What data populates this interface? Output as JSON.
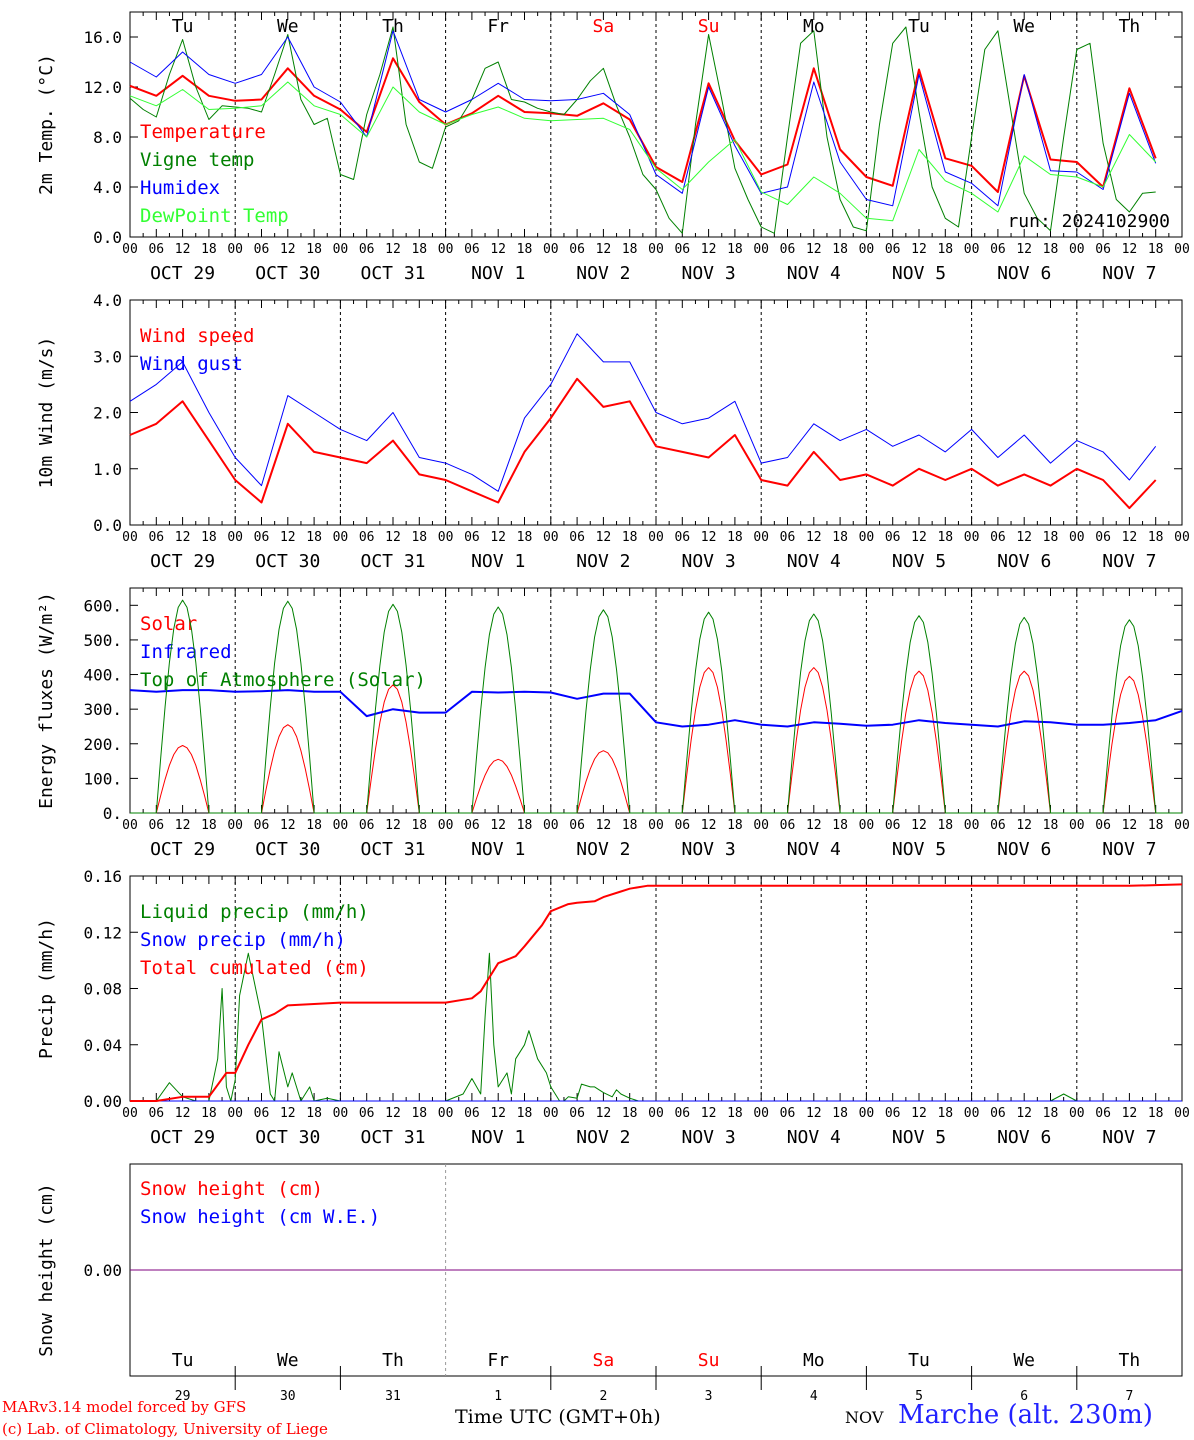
{
  "run_label": "run: 2024102900",
  "x_hour_labels": [
    "00",
    "06",
    "12",
    "18"
  ],
  "x_date_labels": [
    "OCT 29",
    "OCT 30",
    "OCT 31",
    "NOV  1",
    "NOV  2",
    "NOV  3",
    "NOV  4",
    "NOV  5",
    "NOV  6",
    "NOV  7"
  ],
  "weekdays": [
    "Tu",
    "We",
    "Th",
    "Fr",
    "Sa",
    "Su",
    "Mo",
    "Tu",
    "We",
    "Th"
  ],
  "weekday_colors": [
    "#000000",
    "#000000",
    "#000000",
    "#000000",
    "#ff0000",
    "#ff0000",
    "#000000",
    "#000000",
    "#000000",
    "#000000"
  ],
  "day_numbers": [
    "29",
    "30",
    "31",
    "1",
    "2",
    "3",
    "4",
    "5",
    "6",
    "7"
  ],
  "footer": {
    "credit_line1": "MARv3.14 model forced by GFS",
    "credit_line2": "(c) Lab. of Climatology, University of Liege",
    "x_title": "Time UTC (GMT+0h)",
    "month": "NOV",
    "station": "Marche (alt. 230m)"
  },
  "colors": {
    "red": "#ff0000",
    "green": "#008000",
    "blue": "#0000ff",
    "lightgreen": "#33ff33",
    "purple": "#7f007f"
  },
  "chart_data": [
    {
      "type": "line",
      "ylabel": "2m Temp. (°C)",
      "ylim": [
        0,
        18
      ],
      "yticks": [
        0,
        4,
        8,
        12,
        16
      ],
      "ytick_labels": [
        "0.0",
        "4.0",
        "8.0",
        "12.0",
        "16.0"
      ],
      "x_unit": "hours since OCT 29 00 UTC",
      "series": [
        {
          "name": "Temperature",
          "color": "#ff0000",
          "width": 2,
          "x": [
            0,
            6,
            12,
            18,
            24,
            30,
            36,
            42,
            48,
            54,
            60,
            66,
            72,
            78,
            84,
            90,
            96,
            102,
            108,
            114,
            120,
            126,
            132,
            138,
            144,
            150,
            156,
            162,
            168,
            174,
            180,
            186,
            192,
            198,
            204,
            210,
            216,
            222,
            228,
            234
          ],
          "y": [
            12.1,
            11.3,
            12.9,
            11.3,
            10.9,
            11.0,
            13.5,
            11.3,
            10.2,
            8.4,
            14.3,
            10.8,
            9.0,
            9.9,
            11.3,
            10.0,
            9.9,
            9.7,
            10.7,
            9.4,
            5.6,
            4.4,
            12.3,
            7.7,
            5.0,
            5.8,
            13.5,
            7.0,
            4.8,
            4.1,
            13.4,
            6.3,
            5.7,
            3.6,
            12.9,
            6.2,
            6.0,
            4.0,
            11.9,
            6.3
          ]
        },
        {
          "name": "Vigne temp",
          "color": "#008000",
          "width": 1,
          "x": [
            0,
            3,
            6,
            9,
            12,
            15,
            18,
            21,
            24,
            27,
            30,
            33,
            36,
            39,
            42,
            45,
            48,
            51,
            54,
            57,
            60,
            63,
            66,
            69,
            72,
            75,
            78,
            81,
            84,
            87,
            90,
            93,
            96,
            99,
            102,
            105,
            108,
            111,
            114,
            117,
            120,
            123,
            126,
            129,
            132,
            135,
            138,
            141,
            144,
            147,
            150,
            153,
            156,
            159,
            162,
            165,
            168,
            171,
            174,
            177,
            180,
            183,
            186,
            189,
            192,
            195,
            198,
            201,
            204,
            207,
            210,
            213,
            216,
            219,
            222,
            225,
            228,
            231,
            234
          ],
          "y": [
            11.1,
            10.2,
            9.6,
            13.0,
            15.8,
            12.0,
            9.4,
            10.5,
            10.4,
            10.3,
            10.0,
            13.0,
            16.2,
            11.0,
            9.0,
            9.5,
            5.0,
            4.6,
            9.8,
            13.0,
            16.8,
            9.0,
            6.0,
            5.5,
            8.8,
            9.3,
            11.0,
            13.5,
            14.0,
            11.0,
            10.8,
            10.3,
            10.0,
            9.8,
            11.0,
            12.5,
            13.5,
            10.5,
            8.0,
            5.0,
            3.8,
            1.5,
            0.3,
            9.0,
            16.2,
            11.0,
            5.5,
            3.0,
            0.8,
            0.3,
            8.0,
            15.5,
            16.5,
            8.0,
            3.0,
            0.8,
            0.5,
            9.0,
            15.5,
            16.8,
            10.0,
            4.0,
            1.5,
            0.8,
            8.0,
            15.0,
            16.5,
            10.0,
            3.5,
            1.5,
            0.5,
            8.0,
            15.0,
            15.5,
            7.5,
            3.0,
            2.0,
            3.5,
            3.6
          ]
        },
        {
          "name": "Humidex",
          "color": "#0000ff",
          "width": 1,
          "x": [
            0,
            6,
            12,
            18,
            24,
            30,
            36,
            42,
            48,
            54,
            60,
            66,
            72,
            78,
            84,
            90,
            96,
            102,
            108,
            114,
            120,
            126,
            132,
            138,
            144,
            150,
            156,
            162,
            168,
            174,
            180,
            186,
            192,
            198,
            204,
            210,
            216,
            222,
            228,
            234
          ],
          "y": [
            14.0,
            12.8,
            14.8,
            13.0,
            12.3,
            13.0,
            16.0,
            12.0,
            10.8,
            8.0,
            16.5,
            11.0,
            10.0,
            11.0,
            12.3,
            11.0,
            10.9,
            11.0,
            11.5,
            9.8,
            5.0,
            3.5,
            12.0,
            7.3,
            3.5,
            4.0,
            12.4,
            6.0,
            3.0,
            2.5,
            13.0,
            5.2,
            4.3,
            2.5,
            13.0,
            5.3,
            5.2,
            3.8,
            11.5,
            5.9
          ]
        },
        {
          "name": "DewPoint Temp",
          "color": "#33ff33",
          "width": 1,
          "x": [
            0,
            6,
            12,
            18,
            24,
            30,
            36,
            42,
            48,
            54,
            60,
            66,
            72,
            78,
            84,
            90,
            96,
            102,
            108,
            114,
            120,
            126,
            132,
            138,
            144,
            150,
            156,
            162,
            168,
            174,
            180,
            186,
            192,
            198,
            204,
            210,
            216,
            222,
            228,
            234
          ],
          "y": [
            11.3,
            10.5,
            11.8,
            10.2,
            10.3,
            10.5,
            12.4,
            10.5,
            9.8,
            8.0,
            12.0,
            10.0,
            9.0,
            9.8,
            10.4,
            9.5,
            9.3,
            9.4,
            9.5,
            8.6,
            5.5,
            3.8,
            6.0,
            7.8,
            3.6,
            2.6,
            4.8,
            3.5,
            1.5,
            1.3,
            7.0,
            4.5,
            3.5,
            2.0,
            6.5,
            5.0,
            4.8,
            4.0,
            8.2,
            6.0
          ]
        }
      ]
    },
    {
      "type": "line",
      "ylabel": "10m Wind (m/s)",
      "ylim": [
        0,
        4
      ],
      "yticks": [
        0,
        1,
        2,
        3,
        4
      ],
      "ytick_labels": [
        "0.0",
        "1.0",
        "2.0",
        "3.0",
        "4.0"
      ],
      "x_unit": "hours since OCT 29 00 UTC",
      "series": [
        {
          "name": "Wind speed",
          "color": "#ff0000",
          "width": 2,
          "x": [
            0,
            6,
            12,
            18,
            24,
            30,
            36,
            42,
            48,
            54,
            60,
            66,
            72,
            78,
            84,
            90,
            96,
            102,
            108,
            114,
            120,
            126,
            132,
            138,
            144,
            150,
            156,
            162,
            168,
            174,
            180,
            186,
            192,
            198,
            204,
            210,
            216,
            222,
            228,
            234
          ],
          "y": [
            1.6,
            1.8,
            2.2,
            1.5,
            0.8,
            0.4,
            1.8,
            1.3,
            1.2,
            1.1,
            1.5,
            0.9,
            0.8,
            0.6,
            0.4,
            1.3,
            1.9,
            2.6,
            2.1,
            2.2,
            1.4,
            1.3,
            1.2,
            1.6,
            0.8,
            0.7,
            1.3,
            0.8,
            0.9,
            0.7,
            1.0,
            0.8,
            1.0,
            0.7,
            0.9,
            0.7,
            1.0,
            0.8,
            0.3,
            0.8
          ]
        },
        {
          "name": "Wind gust",
          "color": "#0000ff",
          "width": 1,
          "x": [
            0,
            6,
            12,
            18,
            24,
            30,
            36,
            42,
            48,
            54,
            60,
            66,
            72,
            78,
            84,
            90,
            96,
            102,
            108,
            114,
            120,
            126,
            132,
            138,
            144,
            150,
            156,
            162,
            168,
            174,
            180,
            186,
            192,
            198,
            204,
            210,
            216,
            222,
            228,
            234
          ],
          "y": [
            2.2,
            2.5,
            2.9,
            2.0,
            1.2,
            0.7,
            2.3,
            2.0,
            1.7,
            1.5,
            2.0,
            1.2,
            1.1,
            0.9,
            0.6,
            1.9,
            2.5,
            3.4,
            2.9,
            2.9,
            2.0,
            1.8,
            1.9,
            2.2,
            1.1,
            1.2,
            1.8,
            1.5,
            1.7,
            1.4,
            1.6,
            1.3,
            1.7,
            1.2,
            1.6,
            1.1,
            1.5,
            1.3,
            0.8,
            1.4
          ]
        }
      ]
    },
    {
      "type": "line",
      "ylabel": "Energy fluxes (W/m²)",
      "ylim": [
        0,
        650
      ],
      "yticks": [
        0,
        100,
        200,
        300,
        400,
        500,
        600
      ],
      "ytick_labels": [
        "0.",
        "100.",
        "200.",
        "300.",
        "400.",
        "500.",
        "600."
      ],
      "x_unit": "hours since OCT 29 00 UTC",
      "series": [
        {
          "name": "Solar",
          "color": "#ff0000",
          "width": 1,
          "day_peaks": [
            195,
            255,
            370,
            155,
            180,
            420,
            420,
            410,
            410,
            395
          ]
        },
        {
          "name": "Infrared",
          "color": "#0000ff",
          "width": 2,
          "x": [
            0,
            6,
            12,
            18,
            24,
            30,
            36,
            42,
            48,
            54,
            60,
            66,
            72,
            78,
            84,
            90,
            96,
            102,
            108,
            114,
            120,
            126,
            132,
            138,
            144,
            150,
            156,
            162,
            168,
            174,
            180,
            186,
            192,
            198,
            204,
            210,
            216,
            222,
            228,
            234,
            240
          ],
          "y": [
            355,
            350,
            355,
            355,
            350,
            352,
            355,
            350,
            350,
            280,
            300,
            290,
            290,
            350,
            348,
            350,
            348,
            330,
            345,
            345,
            262,
            250,
            255,
            268,
            255,
            250,
            262,
            258,
            252,
            255,
            268,
            260,
            255,
            250,
            265,
            262,
            255,
            255,
            260,
            268,
            295
          ]
        },
        {
          "name": "Top of Atmosphere (Solar)",
          "color": "#008000",
          "width": 1,
          "day_peaks": [
            615,
            612,
            603,
            595,
            587,
            580,
            575,
            570,
            565,
            558
          ]
        }
      ]
    },
    {
      "type": "line",
      "ylabel": "Precip (mm/h)",
      "ylim": [
        0,
        0.16
      ],
      "yticks": [
        0,
        0.04,
        0.08,
        0.12,
        0.16
      ],
      "ytick_labels": [
        "0.00",
        "0.04",
        "0.08",
        "0.12",
        "0.16"
      ],
      "x_unit": "hours since OCT 29 00 UTC",
      "series": [
        {
          "name": "Liquid precip (mm/h)",
          "color": "#008000",
          "width": 1,
          "x": [
            0,
            6,
            9,
            12,
            15,
            18,
            20,
            21,
            22,
            23,
            24,
            25,
            27,
            28,
            30,
            32,
            33,
            34,
            36,
            37,
            39,
            41,
            42,
            45,
            48,
            72,
            76,
            78,
            80,
            81,
            82,
            83,
            84,
            86,
            87,
            88,
            90,
            91,
            92,
            93,
            95,
            96,
            98,
            99,
            100,
            102,
            103,
            105,
            106,
            108,
            110,
            111,
            112,
            114,
            116,
            117,
            120,
            210,
            213,
            216,
            240
          ],
          "y": [
            0,
            0,
            0.013,
            0.003,
            0,
            0,
            0.03,
            0.08,
            0.01,
            0,
            0.015,
            0.075,
            0.105,
            0.09,
            0.06,
            0.005,
            0,
            0.035,
            0.01,
            0.02,
            0,
            0.01,
            0,
            0.002,
            0,
            0,
            0.005,
            0.016,
            0.005,
            0.06,
            0.105,
            0.04,
            0.01,
            0.02,
            0.005,
            0.03,
            0.04,
            0.05,
            0.04,
            0.03,
            0.02,
            0.01,
            0,
            0,
            0.003,
            0.002,
            0.012,
            0.01,
            0.01,
            0.006,
            0.003,
            0.008,
            0.005,
            0.002,
            0,
            0,
            0,
            0,
            0.005,
            0,
            0
          ]
        },
        {
          "name": "Snow precip (mm/h)",
          "color": "#0000ff",
          "width": 1,
          "x": [
            0,
            240
          ],
          "y": [
            0,
            0
          ]
        },
        {
          "name": "Total cumulated (cm)",
          "color": "#ff0000",
          "width": 2,
          "x": [
            0,
            6,
            12,
            18,
            22,
            24,
            27,
            30,
            33,
            36,
            42,
            48,
            72,
            78,
            80,
            84,
            88,
            90,
            94,
            96,
            100,
            102,
            106,
            108,
            112,
            114,
            118,
            120,
            130,
            132,
            144,
            168,
            192,
            216,
            228,
            240
          ],
          "y": [
            0,
            0,
            0.003,
            0.003,
            0.02,
            0.02,
            0.04,
            0.058,
            0.062,
            0.068,
            0.069,
            0.07,
            0.07,
            0.073,
            0.078,
            0.098,
            0.103,
            0.11,
            0.125,
            0.135,
            0.14,
            0.141,
            0.142,
            0.145,
            0.149,
            0.151,
            0.153,
            0.153,
            0.153,
            0.153,
            0.153,
            0.153,
            0.153,
            0.153,
            0.153,
            0.154
          ]
        }
      ]
    },
    {
      "type": "line",
      "ylabel": "Snow height (cm)",
      "ytick_labels": [
        "0.00"
      ],
      "x_unit": "hours since OCT 29 00 UTC",
      "series": [
        {
          "name": "Snow height (cm)",
          "color": "#ff0000",
          "width": 1,
          "x": [
            0,
            240
          ],
          "y": [
            0,
            0
          ]
        },
        {
          "name": "Snow height (cm W.E.)",
          "color": "#0000ff",
          "width": 1,
          "x": [
            0,
            240
          ],
          "y": [
            0,
            0
          ]
        }
      ]
    }
  ]
}
